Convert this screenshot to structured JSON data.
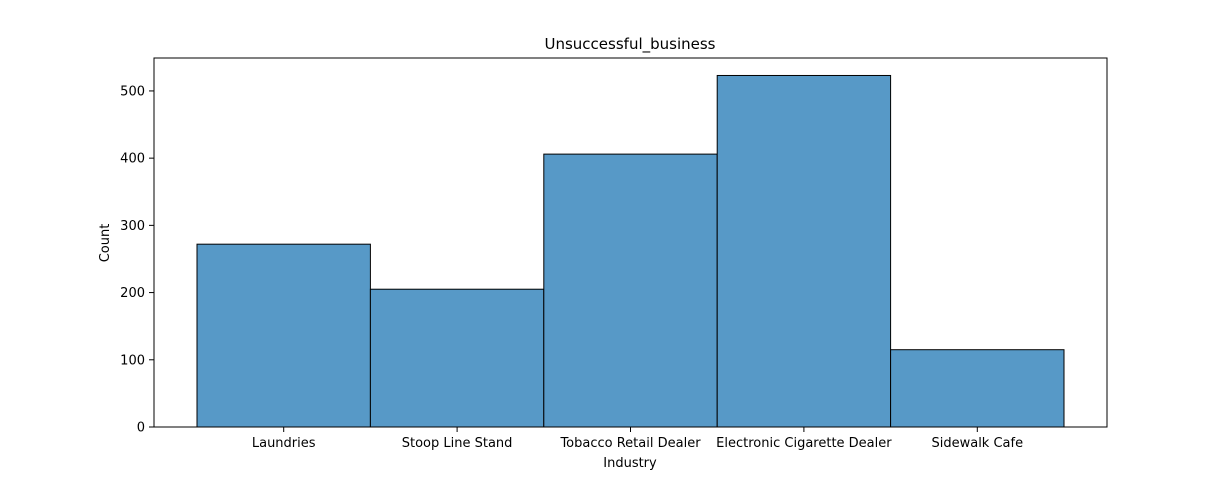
{
  "chart_data": {
    "type": "bar",
    "title": "Unsuccessful_business",
    "xlabel": "Industry",
    "ylabel": "Count",
    "categories": [
      "Laundries",
      "Stoop Line Stand",
      "Tobacco Retail Dealer",
      "Electronic Cigarette Dealer",
      "Sidewalk Cafe"
    ],
    "values": [
      272,
      205,
      406,
      523,
      115
    ],
    "ylim": [
      0,
      549
    ],
    "yticks": [
      0,
      100,
      200,
      300,
      400,
      500
    ],
    "grid": false,
    "bar_color": "#5799c7",
    "edge_color": "#000000"
  }
}
